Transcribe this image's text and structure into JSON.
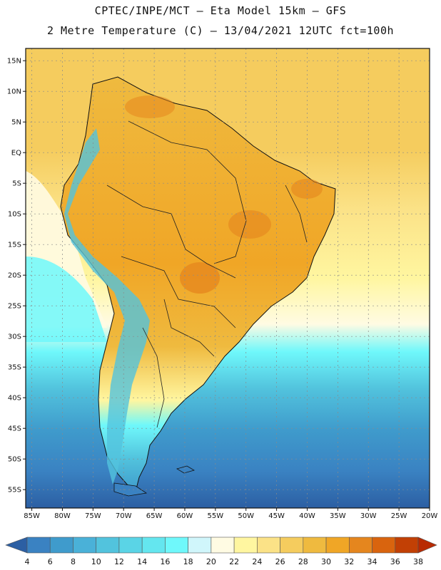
{
  "header": {
    "line1": "CPTEC/INPE/MCT –  Eta Model 15km – GFS",
    "line2": "2 Metre Temperature (C) – 13/04/2021 12UTC fct=100h"
  },
  "map": {
    "lat_range": [
      -58,
      17
    ],
    "lon_range": [
      -86,
      -20
    ],
    "lat_labels": [
      "15N",
      "10N",
      "5N",
      "EQ",
      "5S",
      "10S",
      "15S",
      "20S",
      "25S",
      "30S",
      "35S",
      "40S",
      "45S",
      "50S",
      "55S"
    ],
    "lat_values": [
      15,
      10,
      5,
      0,
      -5,
      -10,
      -15,
      -20,
      -25,
      -30,
      -35,
      -40,
      -45,
      -50,
      -55
    ],
    "lon_labels": [
      "85W",
      "80W",
      "75W",
      "70W",
      "65W",
      "60W",
      "55W",
      "50W",
      "45W",
      "40W",
      "35W",
      "30W",
      "25W",
      "20W"
    ],
    "lon_values": [
      -85,
      -80,
      -75,
      -70,
      -65,
      -60,
      -55,
      -50,
      -45,
      -40,
      -35,
      -30,
      -25,
      -20
    ]
  },
  "legend": {
    "labels": [
      "4",
      "6",
      "8",
      "10",
      "12",
      "14",
      "16",
      "18",
      "20",
      "22",
      "24",
      "26",
      "28",
      "30",
      "32",
      "34",
      "36",
      "38"
    ],
    "colors": [
      "#2c5fa3",
      "#3a82c2",
      "#3f9bcc",
      "#4ab1d8",
      "#52c3dd",
      "#5ad4e6",
      "#64e6ef",
      "#6ff8fb",
      "#d0f6fb",
      "#fffbe3",
      "#fff6a0",
      "#fbe287",
      "#f5cc5e",
      "#efba3f",
      "#f0a626",
      "#e5861e",
      "#d9640e",
      "#c24005",
      "#b82a02"
    ]
  }
}
